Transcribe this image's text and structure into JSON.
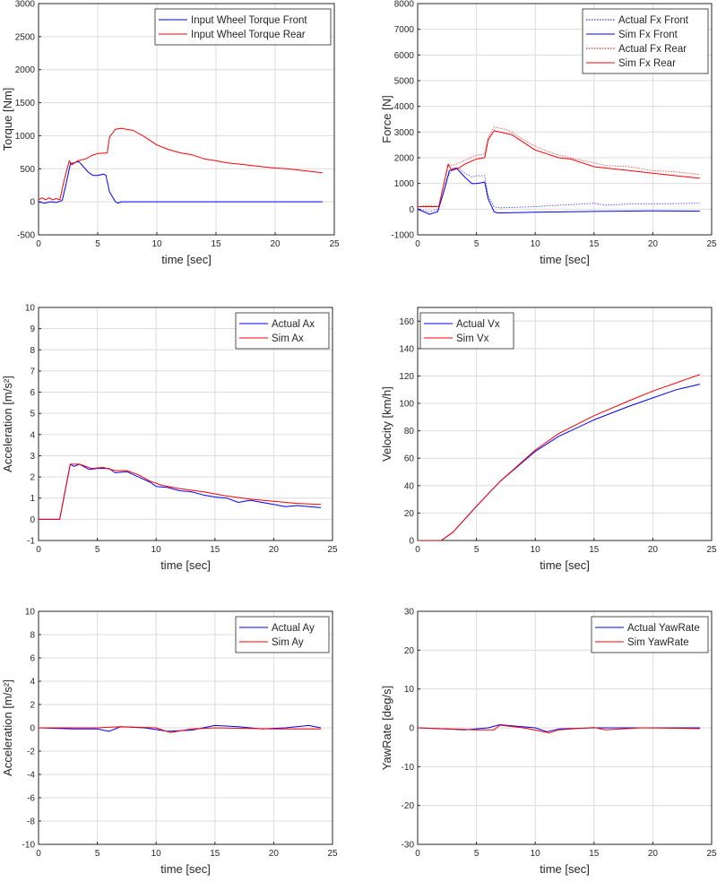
{
  "chart_data": [
    {
      "type": "line",
      "xlabel": "time [sec]",
      "ylabel": "Torque [Nm]",
      "xlim": [
        0,
        25
      ],
      "ylim": [
        -500,
        3000
      ],
      "xticks": [
        0,
        5,
        10,
        15,
        20,
        25
      ],
      "yticks": [
        -500,
        0,
        500,
        1000,
        1500,
        2000,
        2500,
        3000
      ],
      "grid": true,
      "legend": "top-right",
      "series": [
        {
          "name": "Input Wheel Torque Front",
          "color": "#0000ff",
          "style": "solid",
          "x": [
            0,
            0.5,
            1,
            1.5,
            2,
            2.3,
            2.7,
            3,
            3.4,
            3.7,
            4.2,
            4.6,
            5,
            5.5,
            5.7,
            6,
            6.5,
            6.7,
            7,
            24
          ],
          "y": [
            0,
            -20,
            0,
            -10,
            20,
            250,
            580,
            590,
            610,
            550,
            450,
            400,
            400,
            420,
            400,
            150,
            0,
            -20,
            0,
            0
          ]
        },
        {
          "name": "Input Wheel Torque Rear",
          "color": "#ff0000",
          "style": "solid",
          "x": [
            0,
            0.3,
            0.6,
            0.9,
            1.2,
            1.5,
            1.8,
            2.2,
            2.6,
            2.8,
            3.3,
            4,
            4.5,
            5,
            5.8,
            6,
            6.5,
            7,
            8,
            9,
            10,
            11,
            12,
            13,
            14,
            15,
            16,
            17,
            18,
            19,
            20,
            21,
            22,
            23,
            24
          ],
          "y": [
            30,
            60,
            30,
            60,
            30,
            50,
            30,
            350,
            620,
            560,
            620,
            650,
            700,
            730,
            740,
            980,
            1100,
            1110,
            1080,
            980,
            860,
            790,
            740,
            710,
            650,
            620,
            590,
            570,
            550,
            530,
            510,
            500,
            480,
            460,
            440
          ]
        }
      ]
    },
    {
      "type": "line",
      "xlabel": "time [sec]",
      "ylabel": "Force [N]",
      "xlim": [
        0,
        25
      ],
      "ylim": [
        -1000,
        8000
      ],
      "xticks": [
        0,
        5,
        10,
        15,
        20,
        25
      ],
      "yticks": [
        -1000,
        0,
        1000,
        2000,
        3000,
        4000,
        5000,
        6000,
        7000,
        8000
      ],
      "grid": true,
      "legend": "top-right",
      "series": [
        {
          "name": "Actual Fx Front",
          "color": "#0000ff",
          "style": "dotted",
          "x": [
            0,
            1,
            1.8,
            2.5,
            3,
            3.5,
            4,
            4.6,
            5,
            5.7,
            6,
            6.5,
            7,
            10,
            12,
            14,
            15,
            16,
            18,
            20,
            24
          ],
          "y": [
            0,
            -100,
            0,
            1200,
            1600,
            1600,
            1400,
            1250,
            1300,
            1300,
            500,
            100,
            50,
            100,
            150,
            200,
            230,
            150,
            200,
            200,
            230
          ]
        },
        {
          "name": "Sim Fx Front",
          "color": "#0000ff",
          "style": "solid",
          "x": [
            0,
            1,
            1.7,
            2.3,
            2.7,
            3.3,
            4,
            4.6,
            5,
            5.7,
            6,
            6.5,
            6.8,
            10,
            15,
            20,
            24
          ],
          "y": [
            0,
            -200,
            -100,
            800,
            1500,
            1600,
            1250,
            1000,
            1000,
            1050,
            400,
            -100,
            -150,
            -120,
            -90,
            -70,
            -80
          ]
        },
        {
          "name": "Actual Fx Rear",
          "color": "#ff0000",
          "style": "dotted",
          "x": [
            0,
            1,
            1.8,
            2.6,
            3,
            4,
            5,
            5.7,
            6,
            6.5,
            7.5,
            8,
            9,
            10,
            11,
            12,
            13,
            14,
            15,
            16,
            18,
            20,
            22,
            24
          ],
          "y": [
            100,
            150,
            100,
            1750,
            1700,
            1900,
            2100,
            2150,
            2800,
            3200,
            3100,
            3000,
            2700,
            2450,
            2250,
            2100,
            2000,
            1900,
            1800,
            1700,
            1650,
            1500,
            1450,
            1350
          ]
        },
        {
          "name": "Sim Fx Rear",
          "color": "#ff0000",
          "style": "solid",
          "x": [
            0,
            1,
            1.8,
            2.6,
            2.9,
            3.5,
            4,
            5,
            5.7,
            6,
            6.5,
            7.5,
            8,
            9,
            10,
            11,
            12,
            13,
            14,
            15,
            16,
            18,
            20,
            22,
            24
          ],
          "y": [
            100,
            100,
            100,
            1750,
            1500,
            1600,
            1750,
            1950,
            2000,
            2700,
            3050,
            2950,
            2900,
            2600,
            2300,
            2150,
            2000,
            1950,
            1800,
            1650,
            1600,
            1500,
            1400,
            1300,
            1200
          ]
        }
      ]
    },
    {
      "type": "line",
      "xlabel": "time [sec]",
      "ylabel": "Acceleration [m/s²]",
      "xlim": [
        0,
        25
      ],
      "ylim": [
        -1,
        10
      ],
      "xticks": [
        0,
        5,
        10,
        15,
        20,
        25
      ],
      "yticks": [
        -1,
        0,
        1,
        2,
        3,
        4,
        5,
        6,
        7,
        8,
        9,
        10
      ],
      "grid": true,
      "legend": "top-right",
      "series": [
        {
          "name": "Actual Ax",
          "color": "#0000ff",
          "style": "solid",
          "x": [
            0,
            1,
            1.8,
            2.7,
            3,
            3.5,
            4.3,
            5,
            6,
            6.5,
            7.5,
            8.5,
            9.5,
            10,
            11,
            12,
            13,
            14,
            15,
            16,
            17,
            18,
            19,
            20,
            21,
            22,
            23,
            24
          ],
          "y": [
            0,
            0,
            0,
            2.6,
            2.5,
            2.6,
            2.35,
            2.4,
            2.4,
            2.2,
            2.25,
            2.0,
            1.75,
            1.55,
            1.5,
            1.35,
            1.3,
            1.15,
            1.05,
            1.0,
            0.8,
            0.9,
            0.8,
            0.7,
            0.6,
            0.65,
            0.6,
            0.55
          ]
        },
        {
          "name": "Sim Ax",
          "color": "#ff0000",
          "style": "solid",
          "x": [
            0,
            1.8,
            2.7,
            3.5,
            4.5,
            5.5,
            6.5,
            7.5,
            8.5,
            9.5,
            10.5,
            12,
            14,
            16,
            18,
            20,
            22,
            24
          ],
          "y": [
            0,
            0,
            2.6,
            2.6,
            2.4,
            2.45,
            2.3,
            2.3,
            2.1,
            1.8,
            1.6,
            1.45,
            1.3,
            1.1,
            0.95,
            0.85,
            0.75,
            0.7
          ]
        }
      ]
    },
    {
      "type": "line",
      "xlabel": "time [sec]",
      "ylabel": "Velocity [km/h]",
      "xlim": [
        0,
        25
      ],
      "ylim": [
        0,
        170
      ],
      "xticks": [
        0,
        5,
        10,
        15,
        20,
        25
      ],
      "yticks": [
        0,
        20,
        40,
        60,
        80,
        100,
        120,
        140,
        160
      ],
      "grid": true,
      "legend": "top-left",
      "series": [
        {
          "name": "Actual Vx",
          "color": "#0000ff",
          "style": "solid",
          "x": [
            0,
            2,
            3,
            5,
            7,
            10,
            12,
            15,
            18,
            20,
            22,
            24
          ],
          "y": [
            0,
            0,
            6,
            25,
            43,
            65,
            76,
            88,
            98,
            104,
            110,
            114
          ]
        },
        {
          "name": "Sim Vx",
          "color": "#ff0000",
          "style": "solid",
          "x": [
            0,
            2,
            3,
            5,
            7,
            10,
            12,
            15,
            18,
            20,
            22,
            24
          ],
          "y": [
            0,
            0,
            6,
            25,
            43,
            66,
            78,
            91,
            102,
            109,
            115,
            121
          ]
        }
      ]
    },
    {
      "type": "line",
      "xlabel": "time [sec]",
      "ylabel": "Acceleration [m/s²]",
      "xlim": [
        0,
        25
      ],
      "ylim": [
        -10,
        10
      ],
      "xticks": [
        0,
        5,
        10,
        15,
        20,
        25
      ],
      "yticks": [
        -10,
        -8,
        -6,
        -4,
        -2,
        0,
        2,
        4,
        6,
        8,
        10
      ],
      "grid": true,
      "legend": "top-right",
      "series": [
        {
          "name": "Actual Ay",
          "color": "#0000ff",
          "style": "solid",
          "x": [
            0,
            3,
            5,
            6,
            7,
            9,
            11,
            13,
            15,
            17,
            19,
            21,
            23,
            24
          ],
          "y": [
            0,
            -0.1,
            -0.1,
            -0.3,
            0.1,
            0,
            -0.3,
            -0.2,
            0.2,
            0.1,
            -0.1,
            0,
            0.2,
            0
          ]
        },
        {
          "name": "Sim Ay",
          "color": "#ff0000",
          "style": "solid",
          "x": [
            0,
            5,
            7,
            10,
            11.2,
            13,
            15,
            20,
            24
          ],
          "y": [
            0,
            0,
            0.1,
            0,
            -0.4,
            -0.1,
            0,
            -0.1,
            -0.1
          ]
        }
      ]
    },
    {
      "type": "line",
      "xlabel": "time [sec]",
      "ylabel": "YawRate [deg/s]",
      "xlim": [
        0,
        25
      ],
      "ylim": [
        -30,
        30
      ],
      "xticks": [
        0,
        5,
        10,
        15,
        20,
        25
      ],
      "yticks": [
        -30,
        -20,
        -10,
        0,
        10,
        20,
        30
      ],
      "grid": true,
      "legend": "top-right",
      "series": [
        {
          "name": "Actual YawRate",
          "color": "#0000ff",
          "style": "solid",
          "x": [
            0,
            4,
            6,
            7,
            8,
            10,
            11,
            12,
            15,
            20,
            24
          ],
          "y": [
            0,
            -0.5,
            0,
            0.8,
            0.5,
            0,
            -1,
            -0.3,
            0,
            0,
            0
          ]
        },
        {
          "name": "Sim YawRate",
          "color": "#ff0000",
          "style": "solid",
          "x": [
            0,
            5,
            6.5,
            7,
            9,
            11.2,
            12,
            15,
            16,
            19,
            24
          ],
          "y": [
            0,
            -0.5,
            -0.5,
            0.7,
            0,
            -1.3,
            -0.5,
            0.1,
            -0.5,
            0,
            -0.2
          ]
        }
      ]
    }
  ]
}
